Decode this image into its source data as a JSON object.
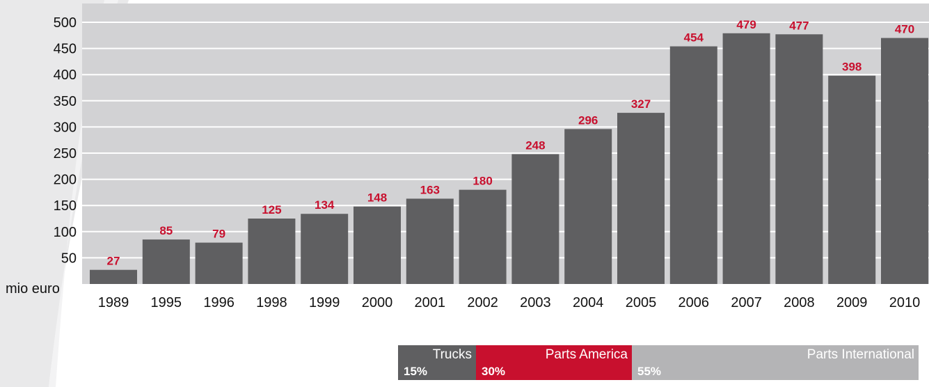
{
  "chart_data": {
    "type": "bar",
    "categories": [
      "1989",
      "1995",
      "1996",
      "1998",
      "1999",
      "2000",
      "2001",
      "2002",
      "2003",
      "2004",
      "2005",
      "2006",
      "2007",
      "2008",
      "2009",
      "2010"
    ],
    "values": [
      27,
      85,
      79,
      125,
      134,
      148,
      163,
      180,
      248,
      296,
      327,
      454,
      479,
      477,
      398,
      470
    ],
    "y_ticks": [
      50,
      100,
      150,
      200,
      250,
      300,
      350,
      400,
      450,
      500
    ],
    "ylabel": "mio euro",
    "ylim": [
      0,
      500
    ],
    "grid": true,
    "colors": {
      "bar": "#5f5f61",
      "data_label": "#c8102e",
      "plot_background": "#d2d2d4",
      "grid": "#ffffff"
    }
  },
  "segments": [
    {
      "label": "Trucks",
      "percent": "15%",
      "share": 15,
      "color": "#5f5f61"
    },
    {
      "label": "Parts America",
      "percent": "30%",
      "share": 30,
      "color": "#c8102e"
    },
    {
      "label": "Parts International",
      "percent": "55%",
      "share": 55,
      "color": "#b4b4b6"
    }
  ]
}
